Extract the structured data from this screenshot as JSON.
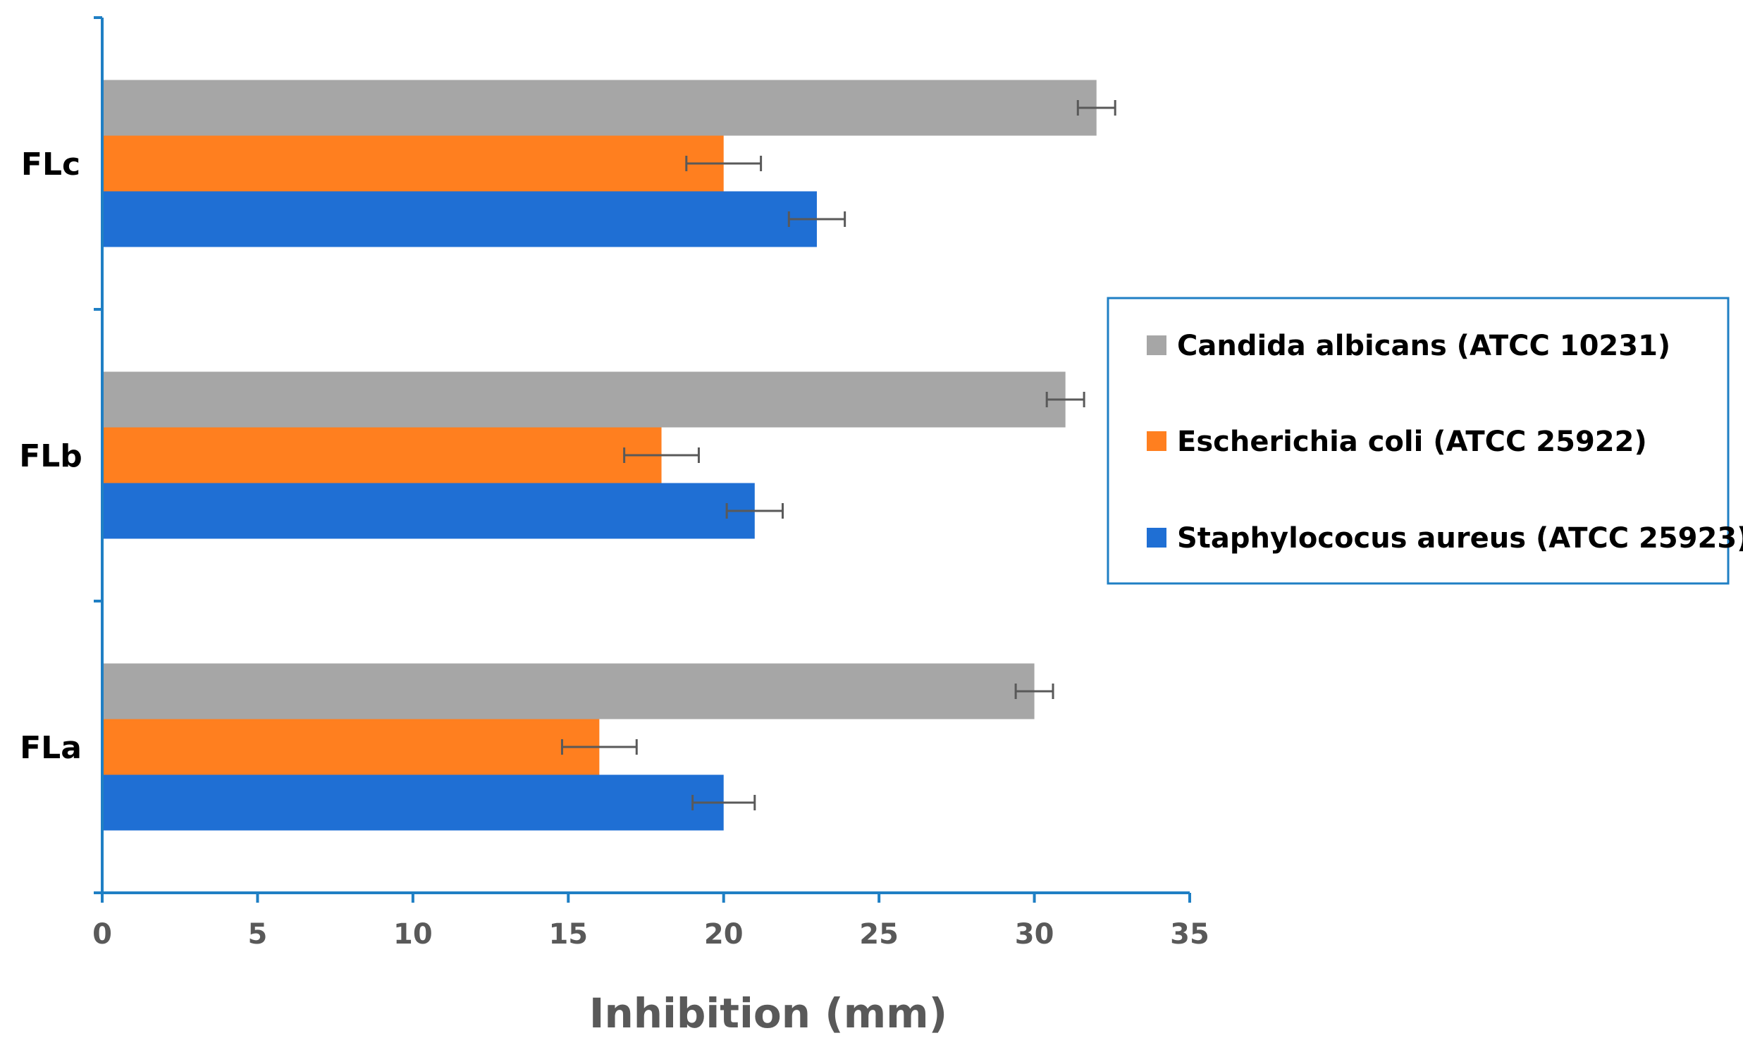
{
  "chart_data": {
    "type": "bar",
    "orientation": "horizontal",
    "categories": [
      "FLa",
      "FLb",
      "FLc"
    ],
    "series": [
      {
        "name": "Staphylococus aureus (ATCC 25923)",
        "color": "#1f6fd4",
        "values": [
          20,
          21,
          23
        ],
        "errors": [
          1.0,
          0.9,
          0.9
        ]
      },
      {
        "name": "Escherichia coli (ATCC 25922)",
        "color": "#ff7f1f",
        "values": [
          16,
          18,
          20
        ],
        "errors": [
          1.2,
          1.2,
          1.2
        ]
      },
      {
        "name": "Candida albicans (ATCC 10231)",
        "color": "#a6a6a6",
        "values": [
          30,
          31,
          32
        ],
        "errors": [
          0.6,
          0.6,
          0.6
        ]
      }
    ],
    "xlabel": "Inhibition (mm)",
    "ylabel": "",
    "xlim": [
      0,
      35
    ],
    "xticks": [
      0,
      5,
      10,
      15,
      20,
      25,
      30,
      35
    ],
    "grid": false,
    "legend": {
      "position": "right",
      "order": [
        "Candida albicans (ATCC 10231)",
        "Escherichia coli (ATCC 25922)",
        "Staphylococus aureus (ATCC 25923)"
      ],
      "border_color": "#1f7fc4"
    },
    "axis_color": "#1f7fc4",
    "error_bar_color": "#595959"
  }
}
